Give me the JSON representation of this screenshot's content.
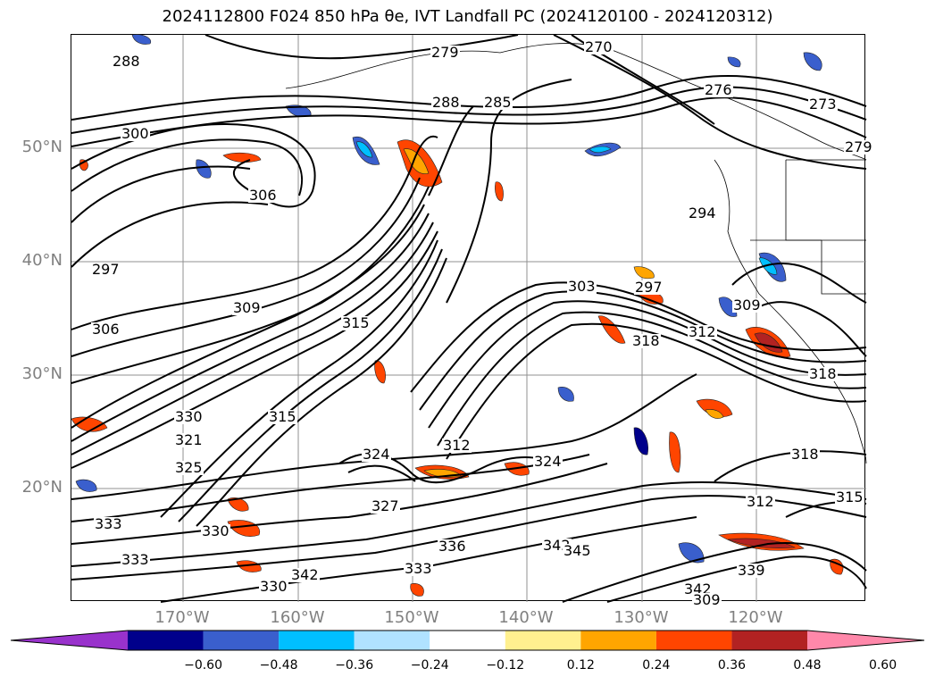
{
  "title": "2024112800 F024 850 hPa θe, IVT Landfall PC (2024120100 - 2024120312)",
  "map": {
    "lat_ticks": [
      "50°N",
      "40°N",
      "30°N",
      "20°N"
    ],
    "lon_ticks": [
      "170°W",
      "160°W",
      "150°W",
      "140°W",
      "130°W",
      "120°W"
    ],
    "contour_labels": [
      "288",
      "279",
      "270",
      "276",
      "273",
      "279",
      "288",
      "285",
      "300",
      "306",
      "297",
      "294",
      "309",
      "306",
      "303",
      "297",
      "318",
      "312",
      "315",
      "309",
      "318",
      "330",
      "321",
      "325",
      "324",
      "312",
      "324",
      "327",
      "330",
      "333",
      "336",
      "333",
      "342",
      "342",
      "345",
      "339",
      "342",
      "309",
      "312",
      "318",
      "315",
      "330",
      "333",
      "315"
    ]
  },
  "colorbar": {
    "ticks": [
      "−0.60",
      "−0.48",
      "−0.36",
      "−0.24",
      "−0.12",
      "0.12",
      "0.24",
      "0.36",
      "0.48",
      "0.60"
    ],
    "colors": [
      "#9932cc",
      "#00008b",
      "#3a5fcd",
      "#00bfff",
      "#b0e2ff",
      "#ffffff",
      "#fff08f",
      "#ffa500",
      "#ff4500",
      "#b22222",
      "#ff88aa"
    ]
  }
}
